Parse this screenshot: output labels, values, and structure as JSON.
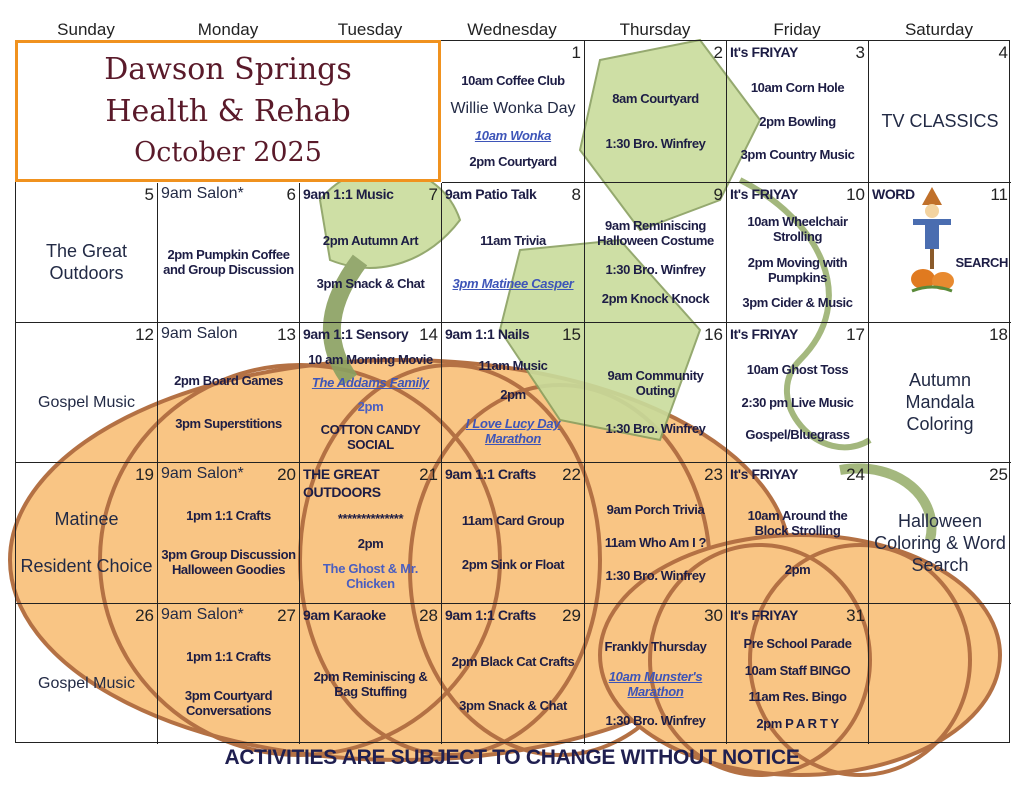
{
  "header": {
    "facility_line1": "Dawson Springs",
    "facility_line2": "Health & Rehab",
    "month": "October 2025"
  },
  "days_of_week": [
    "Sunday",
    "Monday",
    "Tuesday",
    "Wednesday",
    "Thursday",
    "Friday",
    "Saturday"
  ],
  "colors": {
    "title_border": "#f0921f",
    "title_text": "#5a1a2a",
    "activity_text": "#1d1d45",
    "link_text": "#3e55b8",
    "pumpkin": "#f9c27e",
    "vine": "#b9cf8a"
  },
  "weeks": [
    [
      null,
      null,
      null,
      {
        "day": "1",
        "lines": [
          {
            "t": "10am Coffee Club",
            "s": "b"
          },
          {
            "t": "Willie Wonka Day",
            "s": "w"
          },
          {
            "t": "10am Wonka",
            "s": "l"
          },
          {
            "t": "2pm Courtyard",
            "s": "b"
          }
        ]
      },
      {
        "day": "2",
        "lines": [
          {
            "t": "8am Courtyard",
            "s": "b"
          },
          {
            "t": "1:30 Bro. Winfrey",
            "s": "b"
          }
        ]
      },
      {
        "day": "3",
        "lines": [
          {
            "t": "It's FRIYAY",
            "s": "b"
          },
          {
            "t": "10am Corn Hole",
            "s": "b"
          },
          {
            "t": "2pm Bowling",
            "s": "b"
          },
          {
            "t": "3pm Country Music",
            "s": "b"
          }
        ]
      },
      {
        "day": "4",
        "lines": [
          {
            "t": "TV CLASSICS",
            "s": "n"
          }
        ]
      }
    ],
    [
      {
        "day": "5",
        "lines": [
          {
            "t": "The Great Outdoors",
            "s": "n"
          }
        ]
      },
      {
        "day": "6",
        "top": "9am Salon*",
        "lines": [
          {
            "t": "2pm Pumpkin Coffee and Group Discussion",
            "s": "b"
          }
        ]
      },
      {
        "day": "7",
        "lines": [
          {
            "t": "9am 1:1 Music",
            "s": "b"
          },
          {
            "t": "2pm Autumn Art",
            "s": "b"
          },
          {
            "t": "3pm Snack & Chat",
            "s": "b"
          }
        ]
      },
      {
        "day": "8",
        "lines": [
          {
            "t": "9am Patio Talk",
            "s": "b"
          },
          {
            "t": "11am Trivia",
            "s": "b"
          },
          {
            "t": "3pm Matinee Casper",
            "s": "l"
          }
        ]
      },
      {
        "day": "9",
        "lines": [
          {
            "t": "9am Reminiscing Halloween Costume",
            "s": "b"
          },
          {
            "t": "1:30 Bro. Winfrey",
            "s": "b"
          },
          {
            "t": "2pm Knock Knock",
            "s": "b"
          }
        ]
      },
      {
        "day": "10",
        "lines": [
          {
            "t": "It's FRIYAY",
            "s": "b"
          },
          {
            "t": "10am Wheelchair Strolling",
            "s": "b"
          },
          {
            "t": "2pm Moving with Pumpkins",
            "s": "b"
          },
          {
            "t": "3pm Cider & Music",
            "s": "b"
          }
        ]
      },
      {
        "day": "11",
        "lines": [
          {
            "t": "WORD",
            "s": "b"
          },
          {
            "t": "SEARCH",
            "s": "b"
          }
        ]
      }
    ],
    [
      {
        "day": "12",
        "lines": [
          {
            "t": "Gospel Music",
            "s": "w"
          }
        ]
      },
      {
        "day": "13",
        "top": "9am Salon",
        "lines": [
          {
            "t": "2pm Board Games",
            "s": "b"
          },
          {
            "t": "3pm Superstitions",
            "s": "b"
          }
        ]
      },
      {
        "day": "14",
        "lines": [
          {
            "t": "9am 1:1 Sensory",
            "s": "b"
          },
          {
            "t": "10 am Morning Movie",
            "s": "b"
          },
          {
            "t": "The Addams Family",
            "s": "l"
          },
          {
            "t": "2pm",
            "s": "lb"
          },
          {
            "t": "COTTON CANDY SOCIAL",
            "s": "b"
          }
        ]
      },
      {
        "day": "15",
        "lines": [
          {
            "t": "9am 1:1 Nails",
            "s": "b"
          },
          {
            "t": "11am Music",
            "s": "b"
          },
          {
            "t": "2pm",
            "s": "b"
          },
          {
            "t": "I Love Lucy Day Marathon",
            "s": "l"
          }
        ]
      },
      {
        "day": "16",
        "lines": [
          {
            "t": "9am Community Outing",
            "s": "b"
          },
          {
            "t": "1:30 Bro. Winfrey",
            "s": "b"
          }
        ]
      },
      {
        "day": "17",
        "lines": [
          {
            "t": "It's FRIYAY",
            "s": "b"
          },
          {
            "t": "10am Ghost Toss",
            "s": "b"
          },
          {
            "t": "2:30 pm Live Music",
            "s": "b"
          },
          {
            "t": "Gospel/Bluegrass",
            "s": "b"
          }
        ]
      },
      {
        "day": "18",
        "lines": [
          {
            "t": "Autumn Mandala Coloring",
            "s": "n"
          }
        ]
      }
    ],
    [
      {
        "day": "19",
        "lines": [
          {
            "t": "Matinee",
            "s": "n"
          },
          {
            "t": "Resident Choice",
            "s": "n"
          }
        ]
      },
      {
        "day": "20",
        "top": "9am Salon*",
        "lines": [
          {
            "t": "1pm 1:1 Crafts",
            "s": "b"
          },
          {
            "t": "3pm Group Discussion Halloween Goodies",
            "s": "b"
          }
        ]
      },
      {
        "day": "21",
        "lines": [
          {
            "t": "THE GREAT OUTDOORS",
            "s": "b"
          },
          {
            "t": "**************",
            "s": "b"
          },
          {
            "t": "2pm",
            "s": "b"
          },
          {
            "t": "The Ghost & Mr. Chicken",
            "s": "lb"
          }
        ]
      },
      {
        "day": "22",
        "lines": [
          {
            "t": "9am 1:1 Crafts",
            "s": "b"
          },
          {
            "t": "11am Card Group",
            "s": "b"
          },
          {
            "t": "2pm Sink or Float",
            "s": "b"
          }
        ]
      },
      {
        "day": "23",
        "lines": [
          {
            "t": "9am Porch Trivia",
            "s": "b"
          },
          {
            "t": "11am Who Am I ?",
            "s": "b"
          },
          {
            "t": "1:30 Bro. Winfrey",
            "s": "b"
          }
        ]
      },
      {
        "day": "24",
        "lines": [
          {
            "t": "It's FRIYAY",
            "s": "b"
          },
          {
            "t": "10am Around the Block Strolling",
            "s": "b"
          },
          {
            "t": "2pm",
            "s": "b"
          }
        ]
      },
      {
        "day": "25",
        "lines": [
          {
            "t": "Halloween Coloring & Word Search",
            "s": "n"
          }
        ]
      }
    ],
    [
      {
        "day": "26",
        "lines": [
          {
            "t": "Gospel  Music",
            "s": "w"
          }
        ]
      },
      {
        "day": "27",
        "top": "9am Salon*",
        "lines": [
          {
            "t": "1pm 1:1 Crafts",
            "s": "b"
          },
          {
            "t": "3pm Courtyard Conversations",
            "s": "b"
          }
        ]
      },
      {
        "day": "28",
        "lines": [
          {
            "t": "9am Karaoke",
            "s": "b"
          },
          {
            "t": "2pm Reminiscing & Bag Stuffing",
            "s": "b"
          }
        ]
      },
      {
        "day": "29",
        "lines": [
          {
            "t": "9am 1:1 Crafts",
            "s": "b"
          },
          {
            "t": "2pm Black Cat Crafts",
            "s": "b"
          },
          {
            "t": "3pm Snack & Chat",
            "s": "b"
          }
        ]
      },
      {
        "day": "30",
        "lines": [
          {
            "t": "Frankly Thursday",
            "s": "b"
          },
          {
            "t": "10am Munster's Marathon",
            "s": "l"
          },
          {
            "t": "1:30 Bro. Winfrey",
            "s": "b"
          }
        ]
      },
      {
        "day": "31",
        "lines": [
          {
            "t": "It's FRIYAY",
            "s": "b"
          },
          {
            "t": "Pre School Parade",
            "s": "b"
          },
          {
            "t": "10am Staff BINGO",
            "s": "b"
          },
          {
            "t": "11am  Res. Bingo",
            "s": "b"
          },
          {
            "t": "2pm P A R T Y",
            "s": "b"
          }
        ]
      },
      null
    ]
  ],
  "footer": "ACTIVITIES ARE SUBJECT TO CHANGE WITHOUT NOTICE"
}
